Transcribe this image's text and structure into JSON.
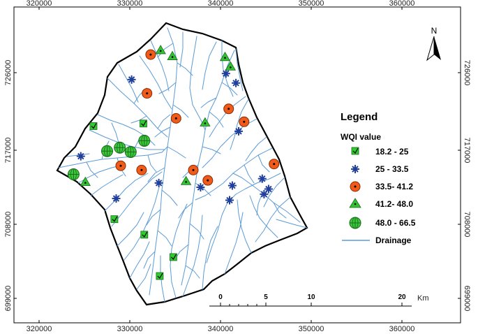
{
  "map": {
    "x_ticks": [
      "320000",
      "330000",
      "340000",
      "350000",
      "360000"
    ],
    "y_ticks": [
      "726000",
      "717000",
      "708000",
      "699000"
    ],
    "north_label": "N",
    "scale": {
      "ticks": [
        "0",
        "5",
        "10",
        "20"
      ],
      "unit": "Km"
    }
  },
  "legend": {
    "title": "Legend",
    "subtitle": "WQI value",
    "classes": [
      {
        "label": "18.2 - 25",
        "symbol": "square-check",
        "color": "#2ecc2e"
      },
      {
        "label": "25 - 33.5",
        "symbol": "asterisk",
        "color": "#1f3f9a"
      },
      {
        "label": "33.5- 41.2",
        "symbol": "circle-dot",
        "color": "#f05a1a"
      },
      {
        "label": "41.2- 48.0",
        "symbol": "triangle",
        "color": "#33c233"
      },
      {
        "label": "48.0 - 66.5",
        "symbol": "globe-circle",
        "color": "#3cc83c"
      }
    ],
    "drainage_label": "Drainage",
    "drainage_color": "#5b9bd5"
  },
  "chart_data": {
    "type": "scatter",
    "x_ticks": [
      320000,
      330000,
      340000,
      350000,
      360000
    ],
    "y_ticks": [
      726000,
      717000,
      708000,
      699000
    ],
    "series": [
      {
        "name": "18.2 - 25",
        "points": [
          [
            326000,
            719800
          ],
          [
            328300,
            709000
          ],
          [
            331600,
            707200
          ],
          [
            334800,
            704600
          ],
          [
            333300,
            702400
          ],
          [
            331500,
            720100
          ]
        ]
      },
      {
        "name": "25 - 33.5",
        "points": [
          [
            324600,
            716300
          ],
          [
            330200,
            725200
          ],
          [
            333200,
            713200
          ],
          [
            328500,
            711400
          ],
          [
            337800,
            712700
          ],
          [
            340600,
            725900
          ],
          [
            341700,
            724800
          ],
          [
            342000,
            719200
          ],
          [
            341300,
            712900
          ],
          [
            341000,
            711200
          ],
          [
            344600,
            713700
          ],
          [
            345300,
            712500
          ],
          [
            344800,
            711900
          ]
        ]
      },
      {
        "name": "33.5- 41.2",
        "points": [
          [
            332300,
            728100
          ],
          [
            331900,
            723600
          ],
          [
            335100,
            720700
          ],
          [
            329000,
            715200
          ],
          [
            331300,
            714700
          ],
          [
            337000,
            714700
          ],
          [
            338600,
            713500
          ],
          [
            340900,
            721800
          ],
          [
            342600,
            720300
          ],
          [
            345900,
            715400
          ]
        ]
      },
      {
        "name": "41.2- 48.0",
        "points": [
          [
            333400,
            728600
          ],
          [
            334700,
            727900
          ],
          [
            338300,
            720200
          ],
          [
            336200,
            713400
          ],
          [
            340500,
            727800
          ],
          [
            341100,
            726700
          ],
          [
            325100,
            713300
          ]
        ]
      },
      {
        "name": "48.0 - 66.5",
        "points": [
          [
            323800,
            714200
          ],
          [
            327500,
            716900
          ],
          [
            328900,
            717300
          ],
          [
            330100,
            716800
          ],
          [
            331600,
            718100
          ]
        ]
      }
    ]
  }
}
